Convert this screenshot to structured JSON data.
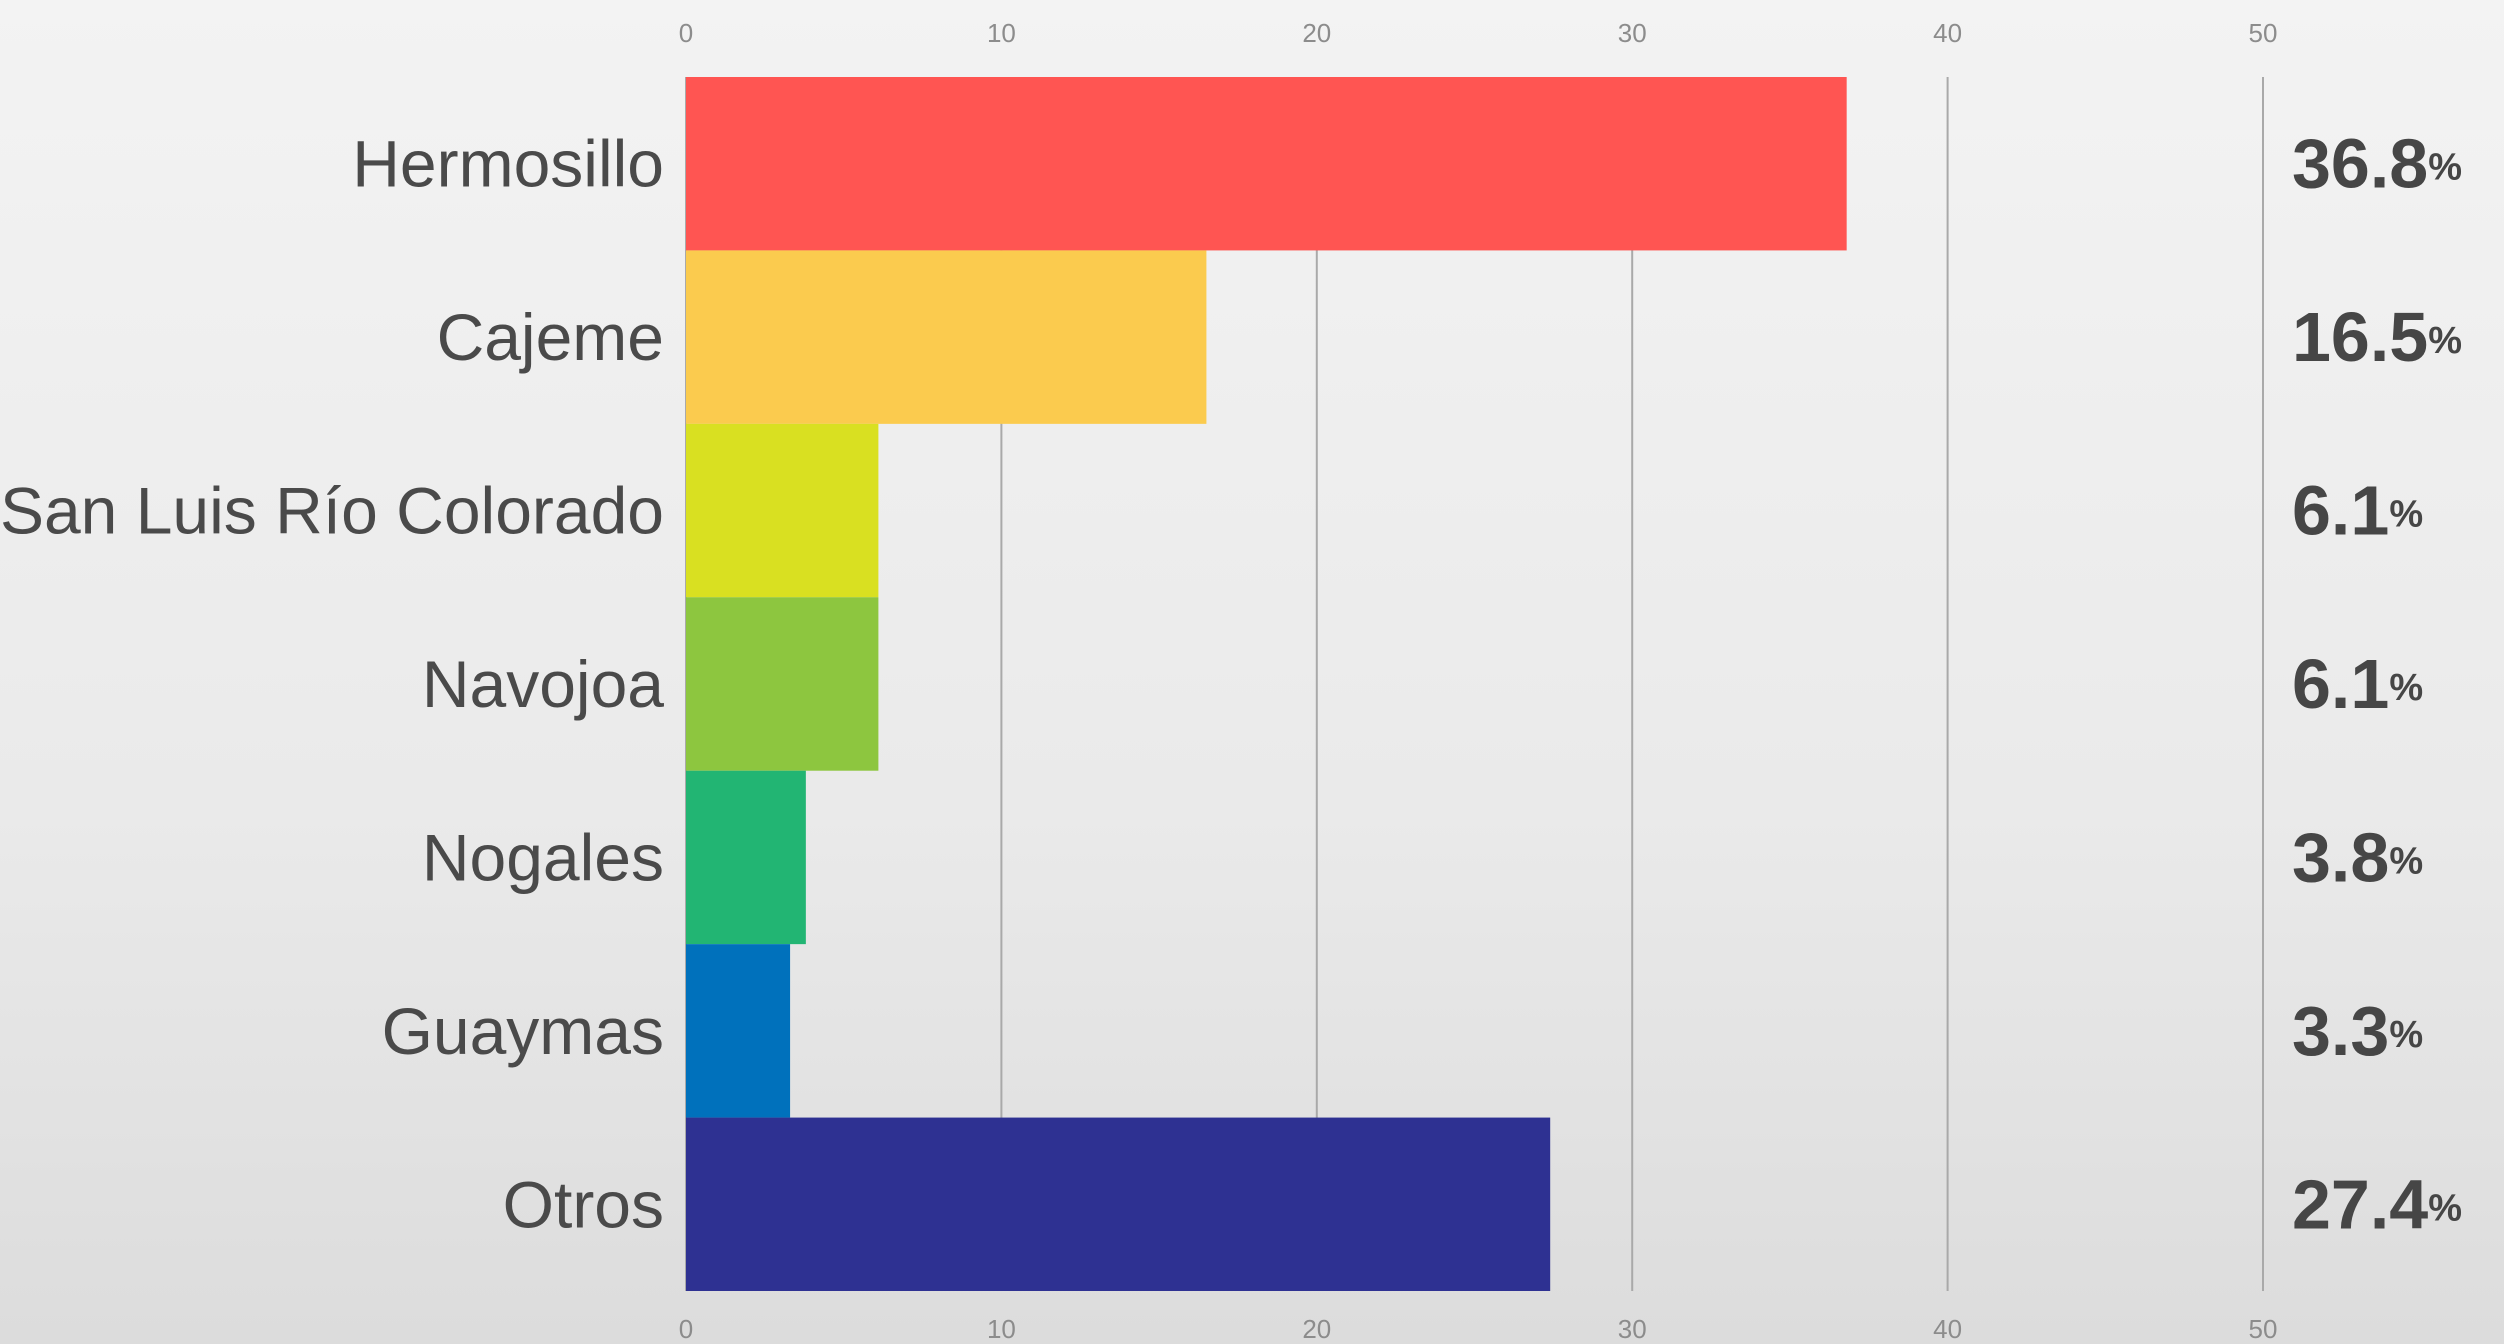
{
  "chart_data": {
    "type": "bar",
    "orientation": "horizontal",
    "categories": [
      "Hermosillo",
      "Cajeme",
      "San Luis Río Colorado",
      "Navojoa",
      "Nogales",
      "Guaymas",
      "Otros"
    ],
    "values": [
      36.8,
      16.5,
      6.1,
      6.1,
      3.8,
      3.3,
      27.4
    ],
    "value_labels": [
      "36.8",
      "16.5",
      "6.1",
      "6.1",
      "3.8",
      "3.3",
      "27.4"
    ],
    "value_unit": "%",
    "colors": [
      "#ff5552",
      "#fbcb4e",
      "#d9e021",
      "#8dc63f",
      "#22b573",
      "#0071bc",
      "#2e3192"
    ],
    "xlim": [
      0,
      50
    ],
    "xticks": [
      0,
      10,
      20,
      30,
      40,
      50
    ],
    "grid": true,
    "tick_labels_top_and_bottom": true,
    "gridline_color": "#a9a9a9"
  }
}
